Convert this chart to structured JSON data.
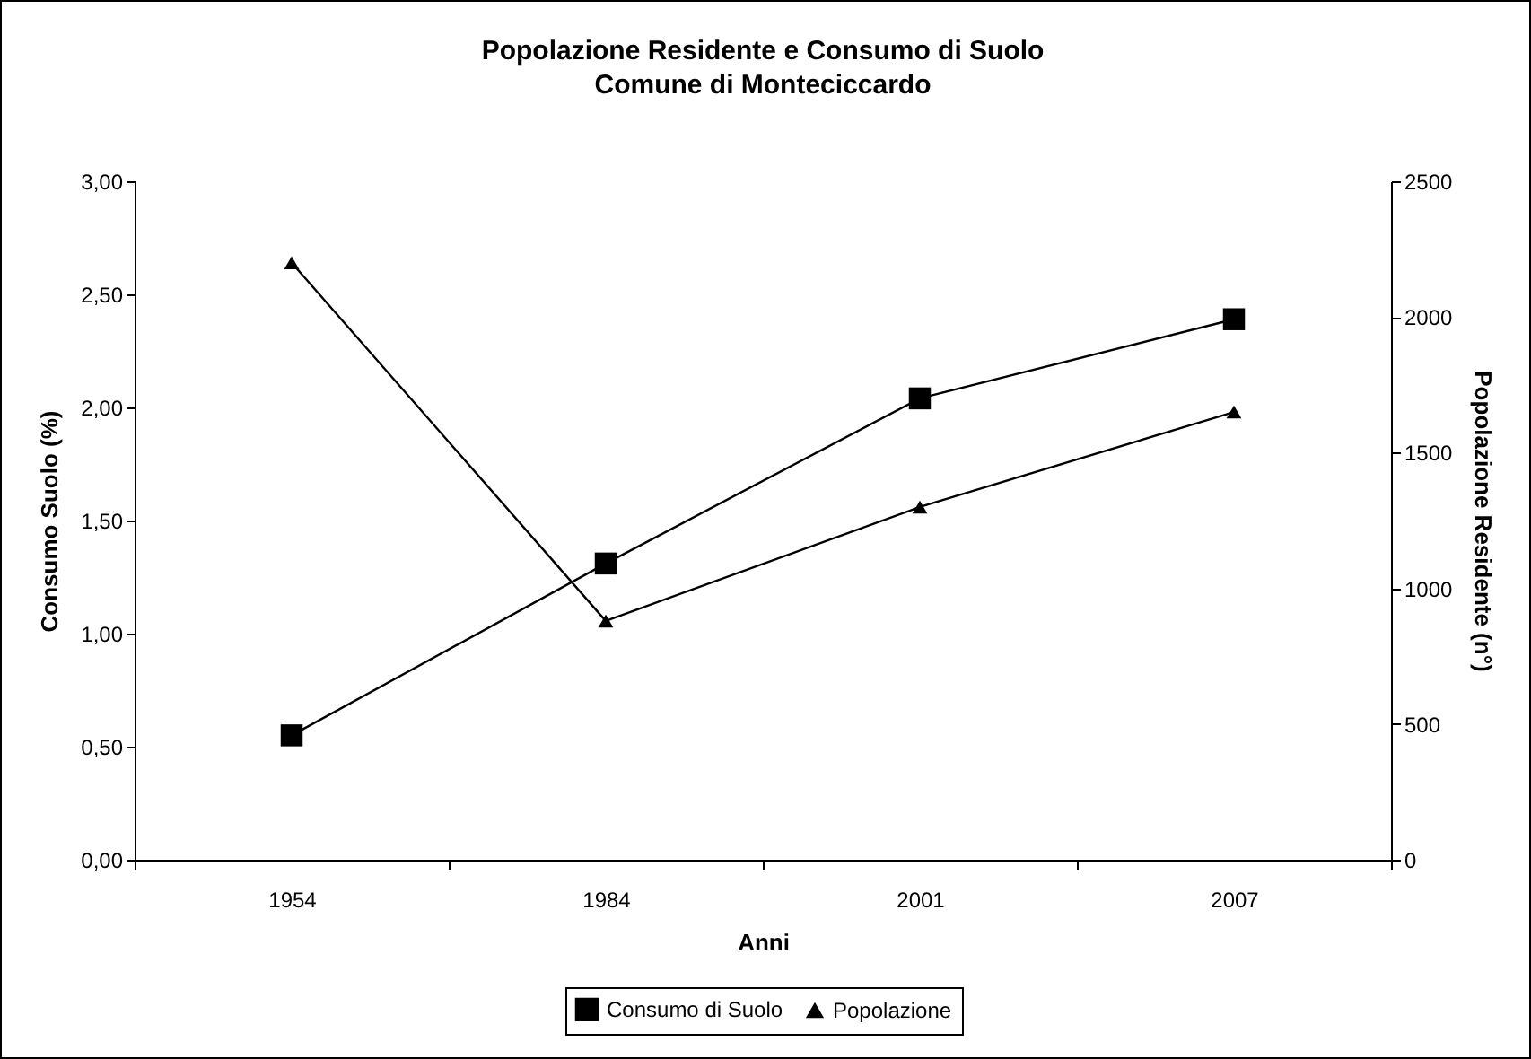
{
  "chart_data": {
    "type": "line",
    "title": "Popolazione Residente e Consumo di Suolo",
    "subtitle": "Comune di Monteciccardo",
    "xlabel": "Anni",
    "ylabel": "Consumo Suolo (%)",
    "y2label": "Popolazione Residente (n°)",
    "categories": [
      "1954",
      "1984",
      "2001",
      "2007"
    ],
    "series": [
      {
        "name": "Consumo di Suolo",
        "color": "#000000",
        "marker": "square",
        "values": [
          0.55,
          1.31,
          2.04,
          2.39
        ]
      },
      {
        "name": "Popolazione",
        "color": "#000000",
        "marker": "triangle",
        "axis": "y2",
        "values": [
          2200,
          880,
          1300,
          1650
        ]
      }
    ],
    "ylim": [
      0,
      3
    ],
    "yticks": [
      {
        "value": 0,
        "label": "0,00"
      },
      {
        "value": 0.5,
        "label": "0,50"
      },
      {
        "value": 1,
        "label": "1,00"
      },
      {
        "value": 1.5,
        "label": "1,50"
      },
      {
        "value": 2,
        "label": "2,00"
      },
      {
        "value": 2.5,
        "label": "2,50"
      },
      {
        "value": 3,
        "label": "3,00"
      }
    ],
    "y2lim": [
      0,
      2500
    ],
    "y2ticks": [
      0,
      500,
      1000,
      1500,
      2000,
      2500
    ],
    "grid": false,
    "legend": "bottom",
    "line_style": "solid"
  }
}
